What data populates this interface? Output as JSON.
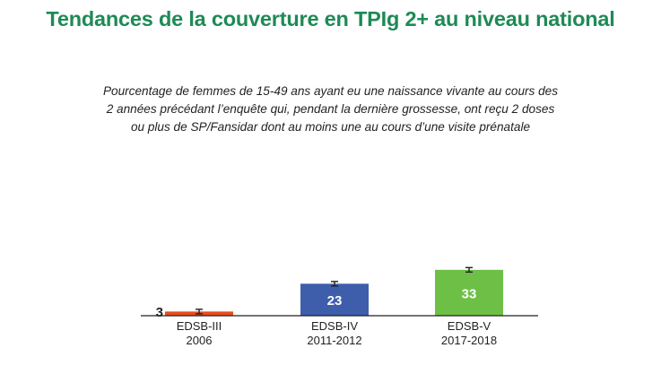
{
  "title": "Tendances de la couverture en TPIg 2+ au niveau national",
  "subtitle_lines": [
    "Pourcentage de femmes de 15-49 ans ayant eu une naissance vivante au cours des",
    "2 années précédant l’enquête qui, pendant la dernière grossesse, ont reçu 2 doses",
    "ou plus de SP/Fansidar dont au moins une au cours d’une visite prénatale"
  ],
  "colors": {
    "title": "#1e8a56",
    "bar_1": "#e84e1b",
    "bar_2": "#3e5eab",
    "bar_3": "#6dbf45",
    "axis": "#231f20",
    "label_inside": "#ffffff",
    "label_outside": "#231f20"
  },
  "chart_data": {
    "type": "bar",
    "categories": [
      [
        "EDSB-III",
        "2006"
      ],
      [
        "EDSB-IV",
        "2011-2012"
      ],
      [
        "EDSB-V",
        "2017-2018"
      ]
    ],
    "values": [
      3,
      23,
      33
    ],
    "error_bars": true,
    "ylim": [
      0,
      100
    ],
    "grid": false,
    "legend": "none"
  }
}
